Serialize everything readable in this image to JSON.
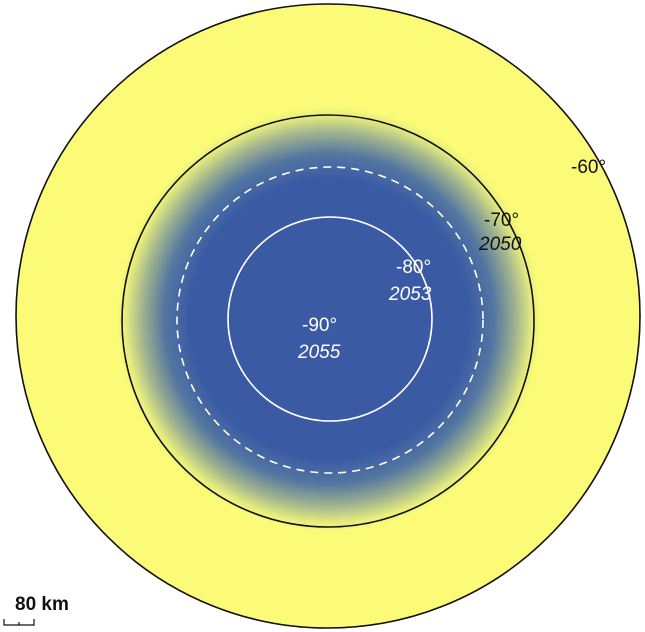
{
  "colors": {
    "outer_fill": "#fbfb78",
    "inner_fill": "#3a5ba4",
    "ring_outline": "#111111",
    "light_ring": "#ffffff"
  },
  "rings": [
    {
      "latitude_label": "-60°",
      "year_label": ""
    },
    {
      "latitude_label": "-70°",
      "year_label": "2050"
    },
    {
      "latitude_label": "-80°",
      "year_label": "2053"
    },
    {
      "latitude_label": "-90°",
      "year_label": "2055"
    }
  ],
  "scale_bar": {
    "label": "80 km"
  }
}
